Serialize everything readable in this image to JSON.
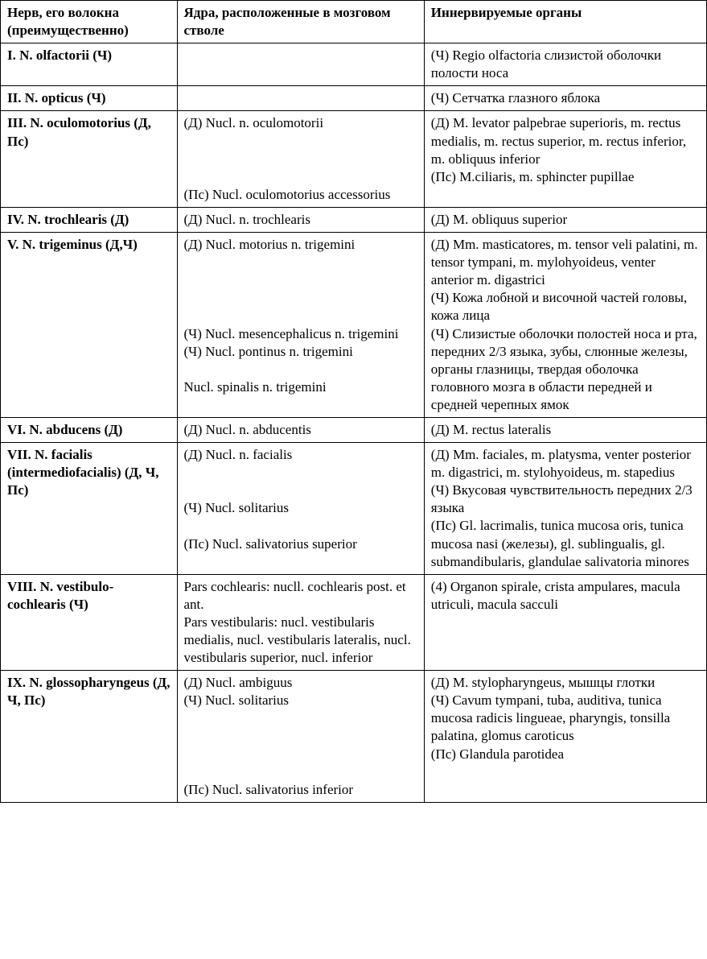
{
  "table": {
    "border_color": "#000000",
    "border_width": 1.5,
    "font_family": "Times New Roman",
    "font_size_pt": 12,
    "background_color": "#ffffff",
    "text_color": "#000000",
    "col_widths_pct": [
      25,
      35,
      40
    ],
    "headers": {
      "c1": "Нерв, его волокна (преимущественно)",
      "c2": "Ядра, расположенные в мозговом стволе",
      "c3": "Иннервируемые органы"
    },
    "rows": [
      {
        "nerve": "I. N. olfactorii (Ч)",
        "nuclei": "",
        "organs": "(Ч) Regio olfactoria слизистой оболочки полости носа"
      },
      {
        "nerve": "II. N. opticus (Ч)",
        "nuclei": "",
        "organs": "(Ч) Сетчатка глазного яблока"
      },
      {
        "nerve": "III. N. oculomotorius (Д, Пс)",
        "nuclei": "(Д) Nucl. n. oculomotorii\n\n\n\n(Пс) Nucl. oculomotorius accessorius",
        "organs": "(Д) M. levator palpebrae superioris, m. rectus medialis, m. rectus superior, m. rectus inferior, m. obliquus inferior\n(Пс) M.ciliaris, m. sphincter pupillae"
      },
      {
        "nerve": "IV. N. trochlearis (Д)",
        "nuclei": "(Д) Nucl. n. trochlearis",
        "organs": "(Д) M. obliquus superior"
      },
      {
        "nerve": "V. N. trigeminus (Д,Ч)",
        "nuclei": "(Д) Nucl. motorius n. trigemini\n\n\n\n\n(Ч) Nucl. mesencephalicus n. trigemini\n(Ч) Nucl. pontinus n. trigemini\n\nNucl. spinalis n. trigemini",
        "organs": "(Д) Mm. masticatores, m. tensor veli palatini, m. tensor tympani, m. mylohyoideus, venter anterior m. digastrici\n(Ч) Кожа лобной и височной частей головы, кожа лица\n(Ч) Слизистые оболочки полостей носа и рта, передних 2/3 языка, зубы, слюнные железы, органы глазницы, твердая оболочка головного мозга в области передней и средней черепных ямок"
      },
      {
        "nerve": "VI. N. abducens (Д)",
        "nuclei": "(Д) Nucl. n. abducentis",
        "organs": "(Д) M. rectus lateralis"
      },
      {
        "nerve": "VII. N. facialis (intermediofacialis) (Д, Ч, Пс)",
        "nuclei": "(Д) Nucl. n. facialis\n\n\n(Ч) Nucl. solitarius\n\n(Пс) Nucl. salivatorius superior",
        "organs": "(Д) Mm. faciales, m. platysma, venter posterior m. digastrici, m. stylohyoideus, m. stapedius\n(Ч) Вкусовая чувствительность передних 2/3 языка\n(Пс) Gl. lacrimalis, tunica mucosa oris, tunica mucosa nasi (железы), gl. sublingualis, gl. submandibularis, glandulae salivatoria minores"
      },
      {
        "nerve": "VIII. N. vestibulo-cochlearis (Ч)",
        "nuclei": "Pars cochlearis: nucll. cochlearis post. et ant.\nPars vestibularis: nucl. vestibularis medialis, nucl. vestibularis lateralis, nucl. vestibularis superior, nucl. inferior",
        "organs": "(4) Organon spirale, crista ampulares, macula utriculi, macula sacculi"
      },
      {
        "nerve": "IX. N. glossopharyngeus (Д, Ч, Пс)",
        "nuclei": "(Д) Nucl. ambiguus\n(Ч) Nucl. solitarius\n\n\n\n\n(Пс) Nucl. salivatorius inferior",
        "organs": "(Д) M. stylopharyngeus, мышцы глотки\n(Ч) Cavum tympani, tuba, auditiva, tunica mucosa radicis lingueae, pharyngis, tonsilla palatina, glomus caroticus\n(Пс) Glandula parotidea"
      }
    ]
  }
}
